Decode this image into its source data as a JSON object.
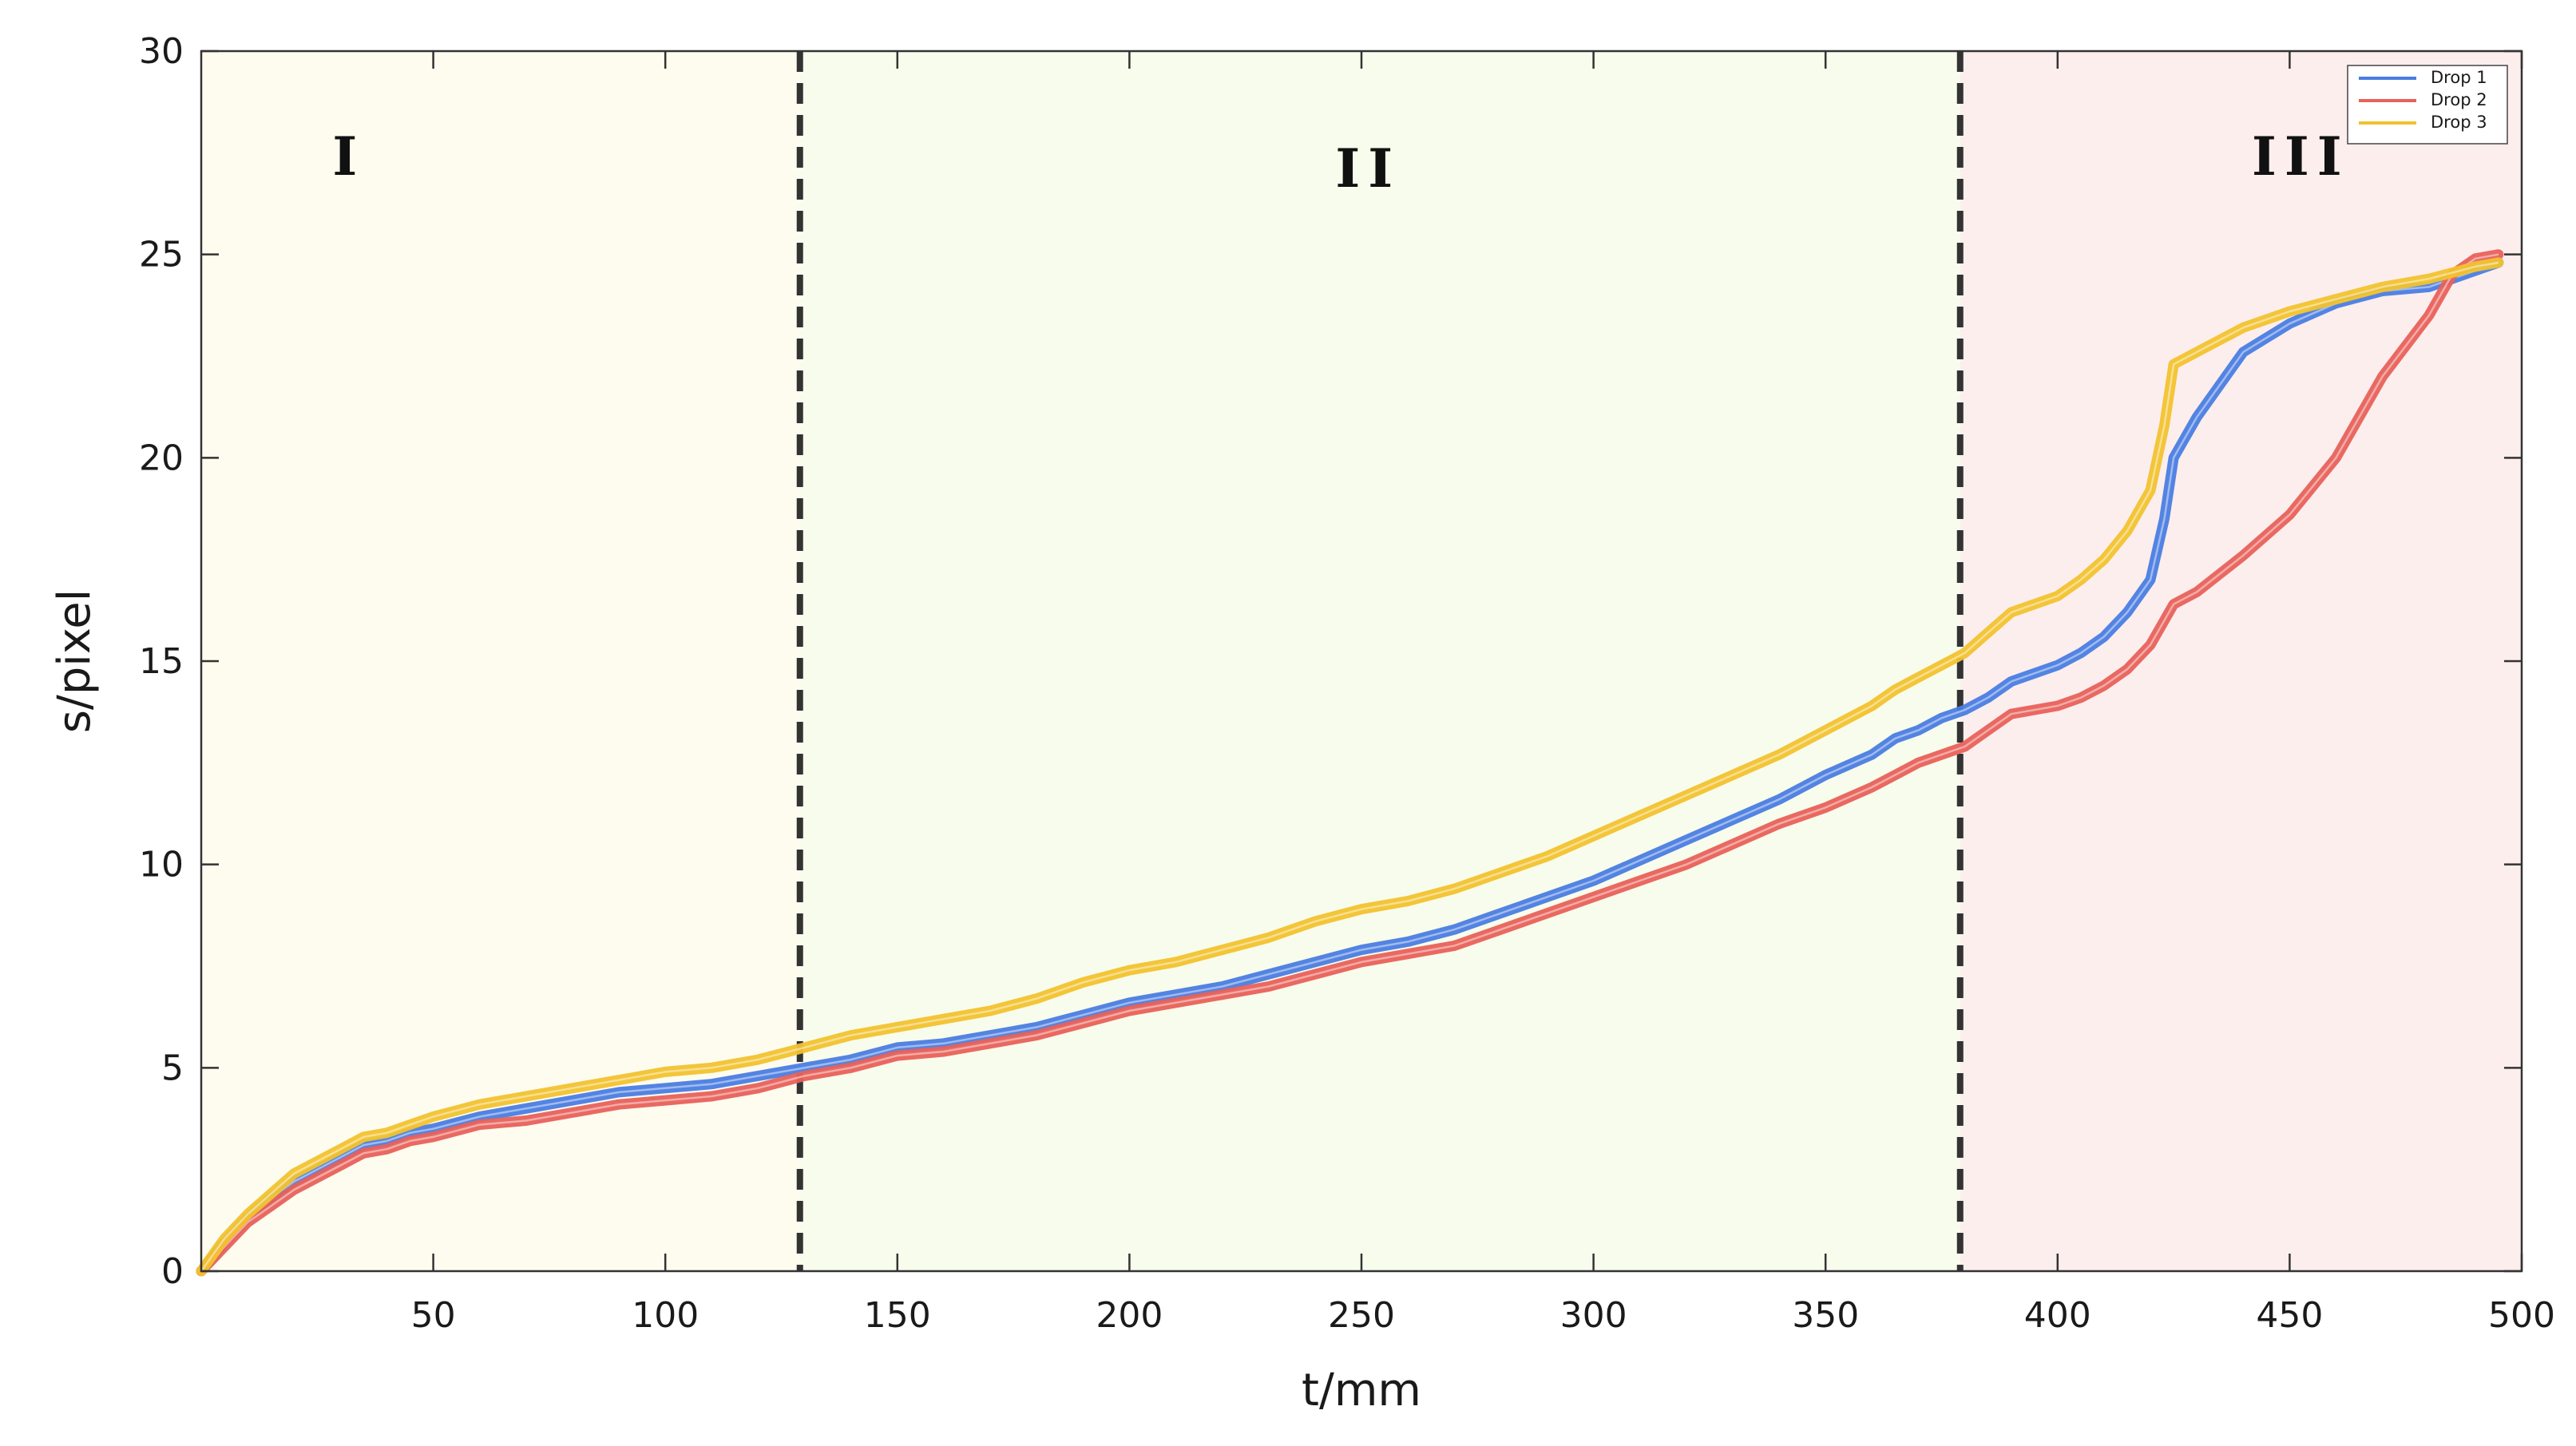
{
  "chart_data": {
    "type": "line",
    "title": "",
    "xlabel": "t/mm",
    "ylabel": "s/pixel",
    "xlim": [
      0,
      500
    ],
    "ylim": [
      0,
      30
    ],
    "xticks": [
      50,
      100,
      150,
      200,
      250,
      300,
      350,
      400,
      450,
      500
    ],
    "yticks": [
      0,
      5,
      10,
      15,
      20,
      25,
      30
    ],
    "grid": false,
    "legend_position": "top-right",
    "regions": [
      {
        "label": "I",
        "x_start": 0,
        "x_end": 129,
        "color": "#fdfcef"
      },
      {
        "label": "II",
        "x_start": 129,
        "x_end": 379,
        "color": "#f8fcec"
      },
      {
        "label": "III",
        "x_start": 379,
        "x_end": 500,
        "color": "#fdeeee"
      }
    ],
    "boundaries": [
      129,
      379
    ],
    "series": [
      {
        "name": "Drop 1",
        "color": "#4a7de2",
        "x": [
          0,
          5,
          10,
          15,
          20,
          25,
          30,
          35,
          40,
          45,
          50,
          60,
          70,
          80,
          90,
          100,
          110,
          120,
          130,
          140,
          150,
          160,
          170,
          180,
          190,
          200,
          210,
          220,
          230,
          240,
          250,
          260,
          270,
          280,
          290,
          300,
          310,
          320,
          330,
          340,
          350,
          360,
          365,
          370,
          375,
          380,
          385,
          390,
          400,
          405,
          410,
          415,
          420,
          423,
          425,
          430,
          440,
          450,
          460,
          470,
          480,
          490,
          495
        ],
        "y": [
          0,
          0.7,
          1.3,
          1.8,
          2.2,
          2.5,
          2.8,
          3.1,
          3.2,
          3.4,
          3.5,
          3.8,
          4.0,
          4.2,
          4.4,
          4.5,
          4.6,
          4.8,
          5.0,
          5.2,
          5.5,
          5.6,
          5.8,
          6.0,
          6.3,
          6.6,
          6.8,
          7.0,
          7.3,
          7.6,
          7.9,
          8.1,
          8.4,
          8.8,
          9.2,
          9.6,
          10.1,
          10.6,
          11.1,
          11.6,
          12.2,
          12.7,
          13.1,
          13.3,
          13.6,
          13.8,
          14.1,
          14.5,
          14.9,
          15.2,
          15.6,
          16.2,
          17.0,
          18.5,
          20.0,
          21.0,
          22.6,
          23.3,
          23.8,
          24.1,
          24.2,
          24.6,
          24.8
        ]
      },
      {
        "name": "Drop 2",
        "color": "#e8615a",
        "x": [
          0,
          5,
          10,
          15,
          20,
          25,
          30,
          35,
          40,
          45,
          50,
          60,
          70,
          80,
          90,
          100,
          110,
          120,
          130,
          140,
          150,
          160,
          170,
          180,
          190,
          200,
          210,
          220,
          230,
          240,
          250,
          260,
          270,
          280,
          290,
          300,
          310,
          320,
          330,
          340,
          350,
          360,
          365,
          370,
          375,
          380,
          385,
          390,
          400,
          405,
          410,
          415,
          420,
          425,
          430,
          440,
          450,
          460,
          470,
          480,
          485,
          490,
          495
        ],
        "y": [
          0,
          0.6,
          1.2,
          1.6,
          2.0,
          2.3,
          2.6,
          2.9,
          3.0,
          3.2,
          3.3,
          3.6,
          3.7,
          3.9,
          4.1,
          4.2,
          4.3,
          4.5,
          4.8,
          5.0,
          5.3,
          5.4,
          5.6,
          5.8,
          6.1,
          6.4,
          6.6,
          6.8,
          7.0,
          7.3,
          7.6,
          7.8,
          8.0,
          8.4,
          8.8,
          9.2,
          9.6,
          10.0,
          10.5,
          11.0,
          11.4,
          11.9,
          12.2,
          12.5,
          12.7,
          12.9,
          13.3,
          13.7,
          13.9,
          14.1,
          14.4,
          14.8,
          15.4,
          16.4,
          16.7,
          17.6,
          18.6,
          20.0,
          22.0,
          23.5,
          24.5,
          24.9,
          25.0
        ]
      },
      {
        "name": "Drop 3",
        "color": "#f2c22e",
        "x": [
          0,
          5,
          10,
          15,
          20,
          25,
          30,
          35,
          40,
          45,
          50,
          60,
          70,
          80,
          90,
          100,
          110,
          120,
          130,
          140,
          150,
          160,
          170,
          180,
          190,
          200,
          210,
          220,
          230,
          240,
          250,
          260,
          270,
          280,
          290,
          300,
          310,
          320,
          330,
          340,
          350,
          360,
          365,
          370,
          375,
          380,
          385,
          390,
          400,
          405,
          410,
          415,
          420,
          423,
          425,
          430,
          440,
          450,
          460,
          470,
          480,
          490,
          495
        ],
        "y": [
          0,
          0.8,
          1.4,
          1.9,
          2.4,
          2.7,
          3.0,
          3.3,
          3.4,
          3.6,
          3.8,
          4.1,
          4.3,
          4.5,
          4.7,
          4.9,
          5.0,
          5.2,
          5.5,
          5.8,
          6.0,
          6.2,
          6.4,
          6.7,
          7.1,
          7.4,
          7.6,
          7.9,
          8.2,
          8.6,
          8.9,
          9.1,
          9.4,
          9.8,
          10.2,
          10.7,
          11.2,
          11.7,
          12.2,
          12.7,
          13.3,
          13.9,
          14.3,
          14.6,
          14.9,
          15.2,
          15.7,
          16.2,
          16.6,
          17.0,
          17.5,
          18.2,
          19.2,
          20.8,
          22.3,
          22.6,
          23.2,
          23.6,
          23.9,
          24.2,
          24.4,
          24.7,
          24.8
        ]
      }
    ]
  }
}
